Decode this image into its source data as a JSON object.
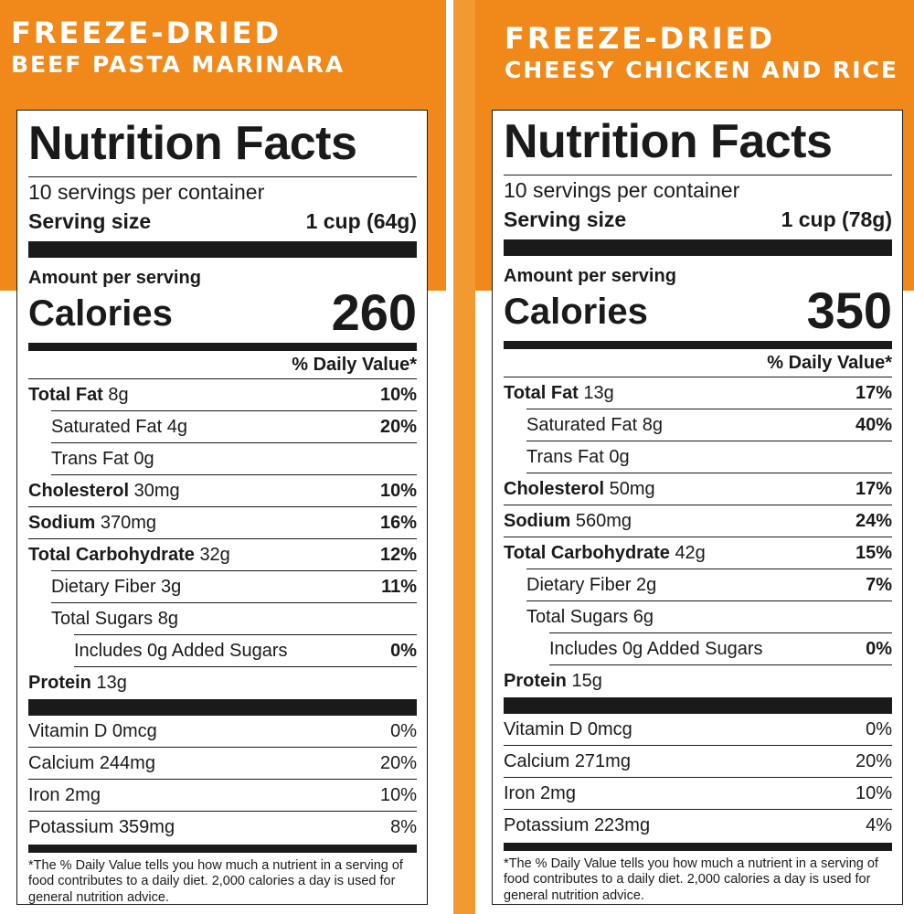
{
  "colors": {
    "accent": "#f0891a",
    "ink": "#1a1a1a",
    "background": "#ffffff"
  },
  "products": [
    {
      "header_line1": "FREEZE-DRIED",
      "header_line2": "BEEF PASTA MARINARA",
      "title": "Nutrition Facts",
      "servings_per_container": "10 servings per container",
      "serving_size_label": "Serving size",
      "serving_size_value": "1 cup (64g)",
      "amount_per_serving": "Amount per serving",
      "calories_label": "Calories",
      "calories_value": "260",
      "daily_value_header": "% Daily Value*",
      "nutrients": [
        {
          "name": "Total Fat",
          "amount": "8g",
          "dv": "10%"
        },
        {
          "name": "Saturated Fat",
          "amount": "4g",
          "dv": "20%"
        },
        {
          "name": "Trans Fat",
          "amount": "0g",
          "dv": ""
        },
        {
          "name": "Cholesterol",
          "amount": "30mg",
          "dv": "10%"
        },
        {
          "name": "Sodium",
          "amount": "370mg",
          "dv": "16%"
        },
        {
          "name": "Total Carbohydrate",
          "amount": "32g",
          "dv": "12%"
        },
        {
          "name": "Dietary Fiber",
          "amount": "3g",
          "dv": "11%"
        },
        {
          "name": "Total Sugars",
          "amount": "8g",
          "dv": ""
        },
        {
          "name": "Includes 0g Added Sugars",
          "amount": "",
          "dv": "0%"
        },
        {
          "name": "Protein",
          "amount": "13g",
          "dv": ""
        }
      ],
      "vitamins": [
        {
          "name": "Vitamin D",
          "amount": "0mcg",
          "dv": "0%"
        },
        {
          "name": "Calcium",
          "amount": "244mg",
          "dv": "20%"
        },
        {
          "name": "Iron",
          "amount": "2mg",
          "dv": "10%"
        },
        {
          "name": "Potassium",
          "amount": "359mg",
          "dv": "8%"
        }
      ],
      "footnote": "*The % Daily Value tells you how much a nutrient in a serving of food contributes to a daily diet. 2,000 calories a day is used for general nutrition advice."
    },
    {
      "header_line1": "FREEZE-DRIED",
      "header_line2": "CHEESY CHICKEN AND RICE",
      "title": "Nutrition Facts",
      "servings_per_container": "10 servings per container",
      "serving_size_label": "Serving size",
      "serving_size_value": "1 cup (78g)",
      "amount_per_serving": "Amount per serving",
      "calories_label": "Calories",
      "calories_value": "350",
      "daily_value_header": "% Daily Value*",
      "nutrients": [
        {
          "name": "Total Fat",
          "amount": "13g",
          "dv": "17%"
        },
        {
          "name": "Saturated Fat",
          "amount": "8g",
          "dv": "40%"
        },
        {
          "name": "Trans Fat",
          "amount": "0g",
          "dv": ""
        },
        {
          "name": "Cholesterol",
          "amount": "50mg",
          "dv": "17%"
        },
        {
          "name": "Sodium",
          "amount": "560mg",
          "dv": "24%"
        },
        {
          "name": "Total Carbohydrate",
          "amount": "42g",
          "dv": "15%"
        },
        {
          "name": "Dietary Fiber",
          "amount": "2g",
          "dv": "7%"
        },
        {
          "name": "Total Sugars",
          "amount": "6g",
          "dv": ""
        },
        {
          "name": "Includes 0g Added Sugars",
          "amount": "",
          "dv": "0%"
        },
        {
          "name": "Protein",
          "amount": "15g",
          "dv": ""
        }
      ],
      "vitamins": [
        {
          "name": "Vitamin D",
          "amount": "0mcg",
          "dv": "0%"
        },
        {
          "name": "Calcium",
          "amount": "271mg",
          "dv": "20%"
        },
        {
          "name": "Iron",
          "amount": "2mg",
          "dv": "10%"
        },
        {
          "name": "Potassium",
          "amount": "223mg",
          "dv": "4%"
        }
      ],
      "footnote": "*The % Daily Value tells you how much a nutrient in a serving of food contributes to a daily diet. 2,000 calories a day is used for general nutrition advice."
    }
  ]
}
